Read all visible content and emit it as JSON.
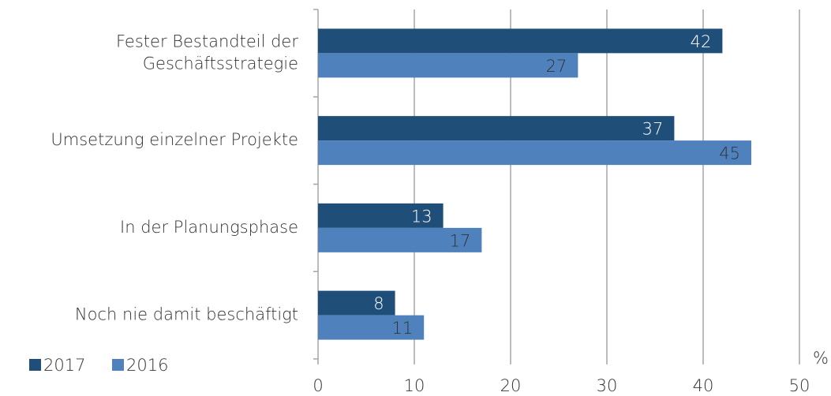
{
  "chart_data": {
    "type": "bar",
    "orientation": "horizontal",
    "categories": [
      "Fester Bestandteil der\nGeschäftsstrategie",
      "Umsetzung einzelner Projekte",
      "In der Planungsphase",
      "Noch nie damit beschäftigt"
    ],
    "series": [
      {
        "name": "2017",
        "color": "#1f4e79",
        "label_color": "#ffffff",
        "values": [
          42,
          37,
          13,
          8
        ]
      },
      {
        "name": "2016",
        "color": "#4f81bd",
        "label_color": "#333333",
        "values": [
          27,
          45,
          17,
          11
        ]
      }
    ],
    "x_label": "%",
    "xlim": [
      0,
      50
    ],
    "xticks": [
      0,
      10,
      20,
      30,
      40,
      50
    ],
    "grid": true,
    "legend": "bottom-left"
  }
}
